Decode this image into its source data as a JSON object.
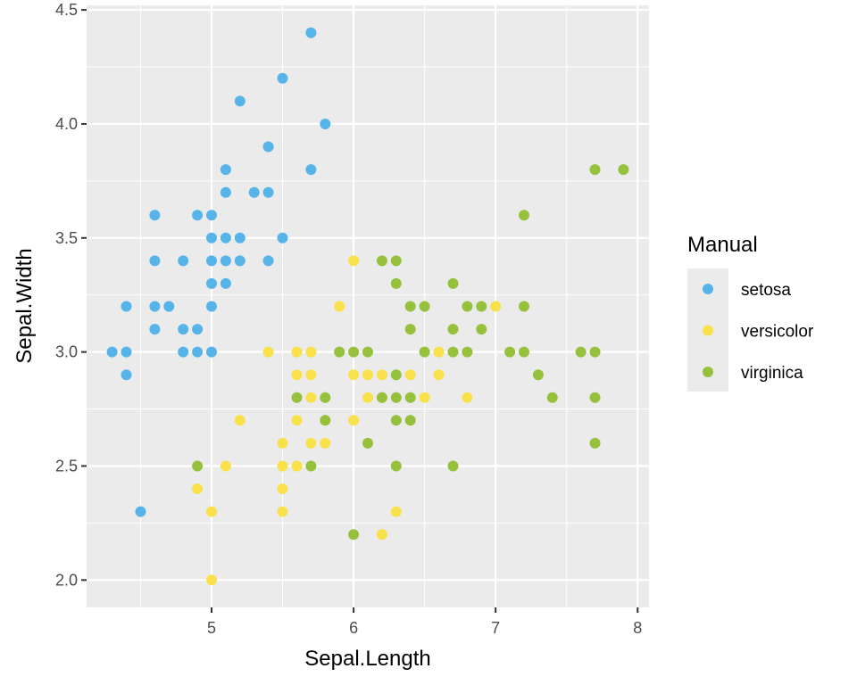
{
  "chart_data": {
    "type": "scatter",
    "title": "",
    "xlabel": "Sepal.Length",
    "ylabel": "Sepal.Width",
    "xlim": [
      4.12,
      8.08
    ],
    "ylim": [
      1.88,
      4.52
    ],
    "xticks": [
      "5",
      "6",
      "7",
      "8"
    ],
    "yticks": [
      "2.0",
      "2.5",
      "3.0",
      "3.5",
      "4.0",
      "4.5"
    ],
    "grid": true,
    "panel_background": "#EBEBEB",
    "legend": {
      "title": "Manual",
      "position": "right"
    },
    "series": [
      {
        "name": "setosa",
        "color": "#56B4E9",
        "points": [
          [
            5.7,
            4.4
          ],
          [
            5.5,
            4.2
          ],
          [
            5.2,
            4.1
          ],
          [
            5.8,
            4.0
          ],
          [
            5.4,
            3.9
          ],
          [
            5.1,
            3.8
          ],
          [
            5.7,
            3.8
          ],
          [
            5.1,
            3.7
          ],
          [
            5.3,
            3.7
          ],
          [
            5.4,
            3.7
          ],
          [
            4.6,
            3.6
          ],
          [
            4.9,
            3.6
          ],
          [
            5.0,
            3.6
          ],
          [
            5.0,
            3.5
          ],
          [
            5.1,
            3.5
          ],
          [
            5.2,
            3.5
          ],
          [
            5.5,
            3.5
          ],
          [
            4.6,
            3.4
          ],
          [
            4.8,
            3.4
          ],
          [
            5.0,
            3.4
          ],
          [
            5.1,
            3.4
          ],
          [
            5.2,
            3.4
          ],
          [
            5.4,
            3.4
          ],
          [
            5.0,
            3.3
          ],
          [
            5.1,
            3.3
          ],
          [
            4.4,
            3.2
          ],
          [
            4.6,
            3.2
          ],
          [
            4.7,
            3.2
          ],
          [
            5.0,
            3.2
          ],
          [
            4.6,
            3.1
          ],
          [
            4.8,
            3.1
          ],
          [
            4.9,
            3.1
          ],
          [
            4.3,
            3.0
          ],
          [
            4.4,
            3.0
          ],
          [
            4.8,
            3.0
          ],
          [
            4.9,
            3.0
          ],
          [
            5.0,
            3.0
          ],
          [
            4.4,
            2.9
          ],
          [
            4.5,
            2.3
          ]
        ]
      },
      {
        "name": "versicolor",
        "color": "#F9E14B",
        "points": [
          [
            6.0,
            3.4
          ],
          [
            5.9,
            3.2
          ],
          [
            7.0,
            3.2
          ],
          [
            6.6,
            3.0
          ],
          [
            5.4,
            3.0
          ],
          [
            5.6,
            3.0
          ],
          [
            5.7,
            3.0
          ],
          [
            6.0,
            2.9
          ],
          [
            6.1,
            2.9
          ],
          [
            6.2,
            2.9
          ],
          [
            6.4,
            2.9
          ],
          [
            6.6,
            2.9
          ],
          [
            5.6,
            2.9
          ],
          [
            5.7,
            2.9
          ],
          [
            5.7,
            2.8
          ],
          [
            6.1,
            2.8
          ],
          [
            6.5,
            2.8
          ],
          [
            6.8,
            2.8
          ],
          [
            6.2,
            2.8
          ],
          [
            5.2,
            2.7
          ],
          [
            5.6,
            2.7
          ],
          [
            5.8,
            2.7
          ],
          [
            6.0,
            2.7
          ],
          [
            5.5,
            2.6
          ],
          [
            5.7,
            2.6
          ],
          [
            5.8,
            2.6
          ],
          [
            5.1,
            2.5
          ],
          [
            5.5,
            2.5
          ],
          [
            5.6,
            2.5
          ],
          [
            4.9,
            2.4
          ],
          [
            5.5,
            2.4
          ],
          [
            5.0,
            2.3
          ],
          [
            5.5,
            2.3
          ],
          [
            6.3,
            2.3
          ],
          [
            6.2,
            2.2
          ],
          [
            5.0,
            2.0
          ]
        ]
      },
      {
        "name": "virginica",
        "color": "#95C13D",
        "points": [
          [
            7.7,
            3.8
          ],
          [
            7.9,
            3.8
          ],
          [
            7.2,
            3.6
          ],
          [
            6.2,
            3.4
          ],
          [
            6.3,
            3.4
          ],
          [
            6.3,
            3.3
          ],
          [
            6.7,
            3.3
          ],
          [
            6.4,
            3.2
          ],
          [
            6.5,
            3.2
          ],
          [
            6.8,
            3.2
          ],
          [
            6.9,
            3.2
          ],
          [
            7.2,
            3.2
          ],
          [
            6.4,
            3.1
          ],
          [
            6.7,
            3.1
          ],
          [
            6.9,
            3.1
          ],
          [
            5.9,
            3.0
          ],
          [
            6.0,
            3.0
          ],
          [
            6.1,
            3.0
          ],
          [
            6.5,
            3.0
          ],
          [
            6.7,
            3.0
          ],
          [
            6.8,
            3.0
          ],
          [
            7.1,
            3.0
          ],
          [
            7.2,
            3.0
          ],
          [
            7.6,
            3.0
          ],
          [
            7.7,
            3.0
          ],
          [
            6.3,
            2.9
          ],
          [
            7.3,
            2.9
          ],
          [
            5.6,
            2.8
          ],
          [
            5.8,
            2.8
          ],
          [
            6.2,
            2.8
          ],
          [
            6.3,
            2.8
          ],
          [
            6.4,
            2.8
          ],
          [
            7.4,
            2.8
          ],
          [
            7.7,
            2.8
          ],
          [
            5.8,
            2.7
          ],
          [
            6.3,
            2.7
          ],
          [
            6.4,
            2.7
          ],
          [
            6.1,
            2.6
          ],
          [
            7.7,
            2.6
          ],
          [
            4.9,
            2.5
          ],
          [
            5.7,
            2.5
          ],
          [
            6.3,
            2.5
          ],
          [
            6.7,
            2.5
          ],
          [
            6.0,
            2.2
          ]
        ]
      }
    ]
  }
}
